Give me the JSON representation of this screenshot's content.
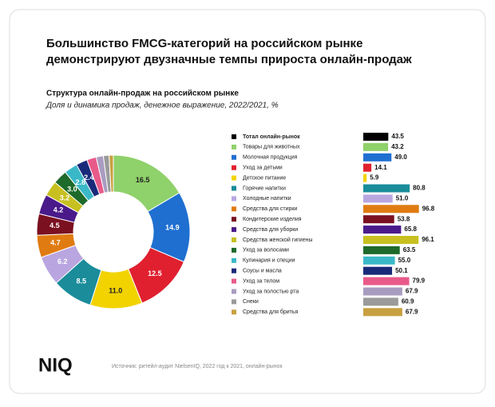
{
  "title": [
    "Большинство FMCG-категорий на российском рынке",
    "демонстрируют двузначные темпы прироста онлайн-продаж"
  ],
  "subtitle": "Структура онлайн-продаж на российском рынке",
  "description": "Доля и динамика продаж, денежное выражение, 2022/2021, %",
  "logo": "NIQ",
  "source": "Источник: ритейл-аудит NielsenIQ, 2022 год к 2021, онлайн-рынок",
  "chart_data": [
    {
      "type": "donut",
      "values": [
        16.5,
        14.9,
        12.5,
        11.0,
        8.5,
        6.2,
        4.7,
        4.5,
        4.2,
        3.2,
        3.0,
        2.8,
        2.4,
        2.0,
        1.5,
        1.2,
        0.9
      ],
      "value_labels": [
        "16.5",
        "14.9",
        "12.5",
        "11.0",
        "8.5",
        "6.2",
        "4.7",
        "4.5",
        "4.2",
        "3.2",
        "3.0",
        "2.8",
        "2.4",
        null,
        null,
        null,
        null
      ],
      "colors": [
        "#8fd16a",
        "#1f6fd1",
        "#e0202f",
        "#f2d300",
        "#1a8c9a",
        "#b9a6e0",
        "#e07b12",
        "#7a1020",
        "#4a1a8a",
        "#c8c020",
        "#1e6a2a",
        "#3ab8c8",
        "#1a2a7a",
        "#e85a8a",
        "#a89cc0",
        "#9a9a9a",
        "#c8a040"
      ]
    },
    {
      "type": "hbar",
      "categories": [
        "Тотал онлайн-рынок",
        "Товары для животных",
        "Молочная продукция",
        "Уход за детьми",
        "Детское питание",
        "Горячие напитки",
        "Холодные напитки",
        "Средства для стирки",
        "Кондитерские изделия",
        "Средства для уборки",
        "Средства женской гигиены",
        "Уход за волосами",
        "Кулинария и специи",
        "Соусы и масла",
        "Уход за телом",
        "Уход за полостью рта",
        "Снеки",
        "Средства для бритья"
      ],
      "values": [
        43.5,
        43.2,
        49.0,
        14.1,
        5.9,
        80.8,
        51.0,
        96.8,
        53.8,
        65.8,
        96.1,
        63.5,
        55.0,
        50.1,
        79.9,
        67.9,
        60.9,
        67.9
      ],
      "value_labels": [
        "43.5",
        "43.2",
        "49.0",
        "14.1",
        "5.9",
        "80.8",
        "51.0",
        "96.8",
        "53.8",
        "65.8",
        "96.1",
        "63.5",
        "55.0",
        "50.1",
        "79.9",
        "67.9",
        "60.9",
        "67.9"
      ],
      "colors": [
        "#000000",
        "#8fd16a",
        "#1f6fd1",
        "#e0202f",
        "#f2d300",
        "#1a8c9a",
        "#b9a6e0",
        "#e07b12",
        "#7a1020",
        "#4a1a8a",
        "#c8c020",
        "#1e6a2a",
        "#3ab8c8",
        "#1a2a7a",
        "#e85a8a",
        "#a89cc0",
        "#9a9a9a",
        "#c8a040"
      ],
      "xlim": [
        0,
        100
      ]
    }
  ]
}
